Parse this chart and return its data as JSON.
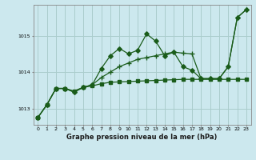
{
  "title": "Graphe pression niveau de la mer (hPa)",
  "background_color": "#cce8ee",
  "grid_color": "#aacccc",
  "line_color": "#1a5c1a",
  "xlim": [
    -0.5,
    23.5
  ],
  "ylim": [
    1012.55,
    1015.85
  ],
  "yticks": [
    1013,
    1014,
    1015
  ],
  "xticks": [
    0,
    1,
    2,
    3,
    4,
    5,
    6,
    7,
    8,
    9,
    10,
    11,
    12,
    13,
    14,
    15,
    16,
    17,
    18,
    19,
    20,
    21,
    22,
    23
  ],
  "smooth_y": [
    1012.75,
    1013.1,
    1013.55,
    1013.55,
    1013.48,
    1013.58,
    1013.62,
    1013.68,
    1013.72,
    1013.73,
    1013.74,
    1013.75,
    1013.76,
    1013.77,
    1013.78,
    1013.79,
    1013.8,
    1013.8,
    1013.8,
    1013.8,
    1013.8,
    1013.8,
    1013.8,
    1013.8
  ],
  "spiky_y": [
    1012.75,
    1013.1,
    1013.55,
    1013.55,
    1013.45,
    1013.58,
    1013.65,
    1014.1,
    1014.45,
    1014.65,
    1014.5,
    1014.6,
    1015.05,
    1014.85,
    1014.45,
    1014.55,
    1014.15,
    1014.05,
    1013.82,
    1013.82,
    1013.82,
    1014.15,
    1015.5,
    1015.72
  ],
  "diagonal_y": [
    1012.75,
    1013.1,
    1013.55,
    1013.55,
    1013.45,
    1013.58,
    1013.65,
    1013.85,
    1014.0,
    1014.1,
    1014.2,
    1014.3,
    1014.35,
    1014.4,
    1014.45,
    1014.5,
    1014.52,
    1014.5,
    1013.82,
    1013.82,
    1013.82,
    1014.15,
    1015.5,
    1015.72
  ]
}
